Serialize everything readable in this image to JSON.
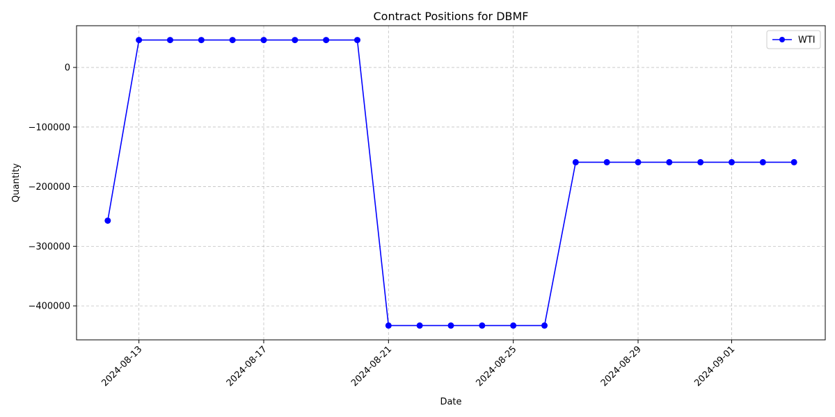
{
  "chart_data": {
    "type": "line",
    "title": "Contract Positions for DBMF",
    "xlabel": "Date",
    "ylabel": "Quantity",
    "x": [
      "2024-08-12",
      "2024-08-13",
      "2024-08-14",
      "2024-08-15",
      "2024-08-16",
      "2024-08-17",
      "2024-08-18",
      "2024-08-19",
      "2024-08-20",
      "2024-08-21",
      "2024-08-22",
      "2024-08-23",
      "2024-08-24",
      "2024-08-25",
      "2024-08-26",
      "2024-08-27",
      "2024-08-28",
      "2024-08-29",
      "2024-08-30",
      "2024-08-31",
      "2024-09-01",
      "2024-09-02",
      "2024-09-03"
    ],
    "series": [
      {
        "name": "WTI",
        "color": "#0000ff",
        "values": [
          -257000,
          46000,
          46000,
          46000,
          46000,
          46000,
          46000,
          46000,
          46000,
          -433000,
          -433000,
          -433000,
          -433000,
          -433000,
          -433000,
          -159000,
          -159000,
          -159000,
          -159000,
          -159000,
          -159000,
          -159000,
          -159000
        ]
      }
    ],
    "xticks": [
      "2024-08-13",
      "2024-08-17",
      "2024-08-21",
      "2024-08-25",
      "2024-08-29",
      "2024-09-01"
    ],
    "yticks": [
      0,
      -100000,
      -200000,
      -300000,
      -400000
    ],
    "ytick_labels": [
      "0",
      "−100000",
      "−200000",
      "−300000",
      "−400000"
    ],
    "xlim": [
      "2024-08-11",
      "2024-09-04"
    ],
    "ylim": [
      -457000,
      70000
    ],
    "grid": true,
    "legend": "top-right"
  }
}
